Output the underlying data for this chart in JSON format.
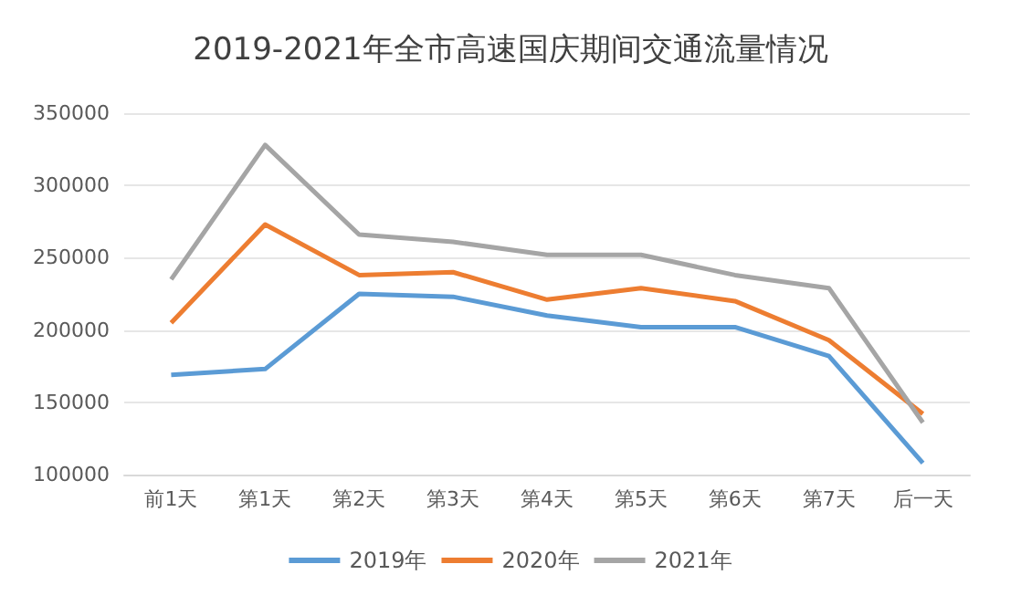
{
  "chart_data": {
    "type": "line",
    "title": "2019-2021年全市高速国庆期间交通流量情况",
    "categories": [
      "前1天",
      "第1天",
      "第2天",
      "第3天",
      "第4天",
      "第5天",
      "第6天",
      "第7天",
      "后一天"
    ],
    "series": [
      {
        "name": "2019年",
        "color": "#5b9bd5",
        "values": [
          169000,
          173000,
          225000,
          223000,
          210000,
          202000,
          202000,
          182000,
          108000
        ]
      },
      {
        "name": "2020年",
        "color": "#ed7d31",
        "values": [
          205000,
          273000,
          238000,
          240000,
          221000,
          229000,
          220000,
          193000,
          142000
        ]
      },
      {
        "name": "2021年",
        "color": "#a5a5a5",
        "values": [
          235000,
          328000,
          266000,
          261000,
          252000,
          252000,
          238000,
          229000,
          136000
        ]
      }
    ],
    "ylim": [
      100000,
      350000
    ],
    "yticks": [
      100000,
      150000,
      200000,
      250000,
      300000,
      350000
    ],
    "grid": "y",
    "legend": "bottom",
    "marker": "none",
    "line_style": "solid"
  }
}
